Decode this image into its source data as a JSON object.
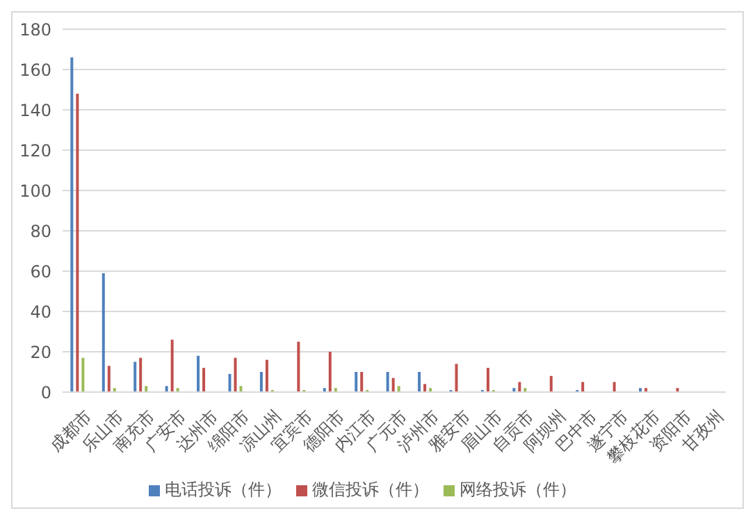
{
  "chart_data": {
    "type": "bar",
    "categories": [
      "成都市",
      "乐山市",
      "南充市",
      "广安市",
      "达州市",
      "绵阳市",
      "凉山州",
      "宜宾市",
      "德阳市",
      "内江市",
      "广元市",
      "泸州市",
      "雅安市",
      "眉山市",
      "自贡市",
      "阿坝州",
      "巴中市",
      "遂宁市",
      "攀枝花市",
      "资阳市",
      "甘孜州"
    ],
    "series": [
      {
        "name": "电话投诉（件）",
        "color": "#4f81bd",
        "values": [
          166,
          59,
          15,
          3,
          18,
          9,
          10,
          0,
          2,
          10,
          10,
          10,
          1,
          1,
          2,
          0,
          1,
          0,
          2,
          0,
          0
        ]
      },
      {
        "name": "微信投诉（件）",
        "color": "#c0504d",
        "values": [
          148,
          13,
          17,
          26,
          12,
          17,
          16,
          25,
          20,
          10,
          7,
          4,
          14,
          12,
          5,
          8,
          5,
          5,
          2,
          2,
          0
        ]
      },
      {
        "name": "网络投诉（件）",
        "color": "#9bbb59",
        "values": [
          17,
          2,
          3,
          2,
          0,
          3,
          1,
          1,
          2,
          1,
          3,
          2,
          0,
          1,
          2,
          0,
          0,
          0,
          0,
          0,
          0
        ]
      }
    ],
    "ylim": [
      0,
      180
    ],
    "yticks": [
      0,
      20,
      40,
      60,
      80,
      100,
      120,
      140,
      160,
      180
    ],
    "grid": "y",
    "legend": "bottom"
  }
}
